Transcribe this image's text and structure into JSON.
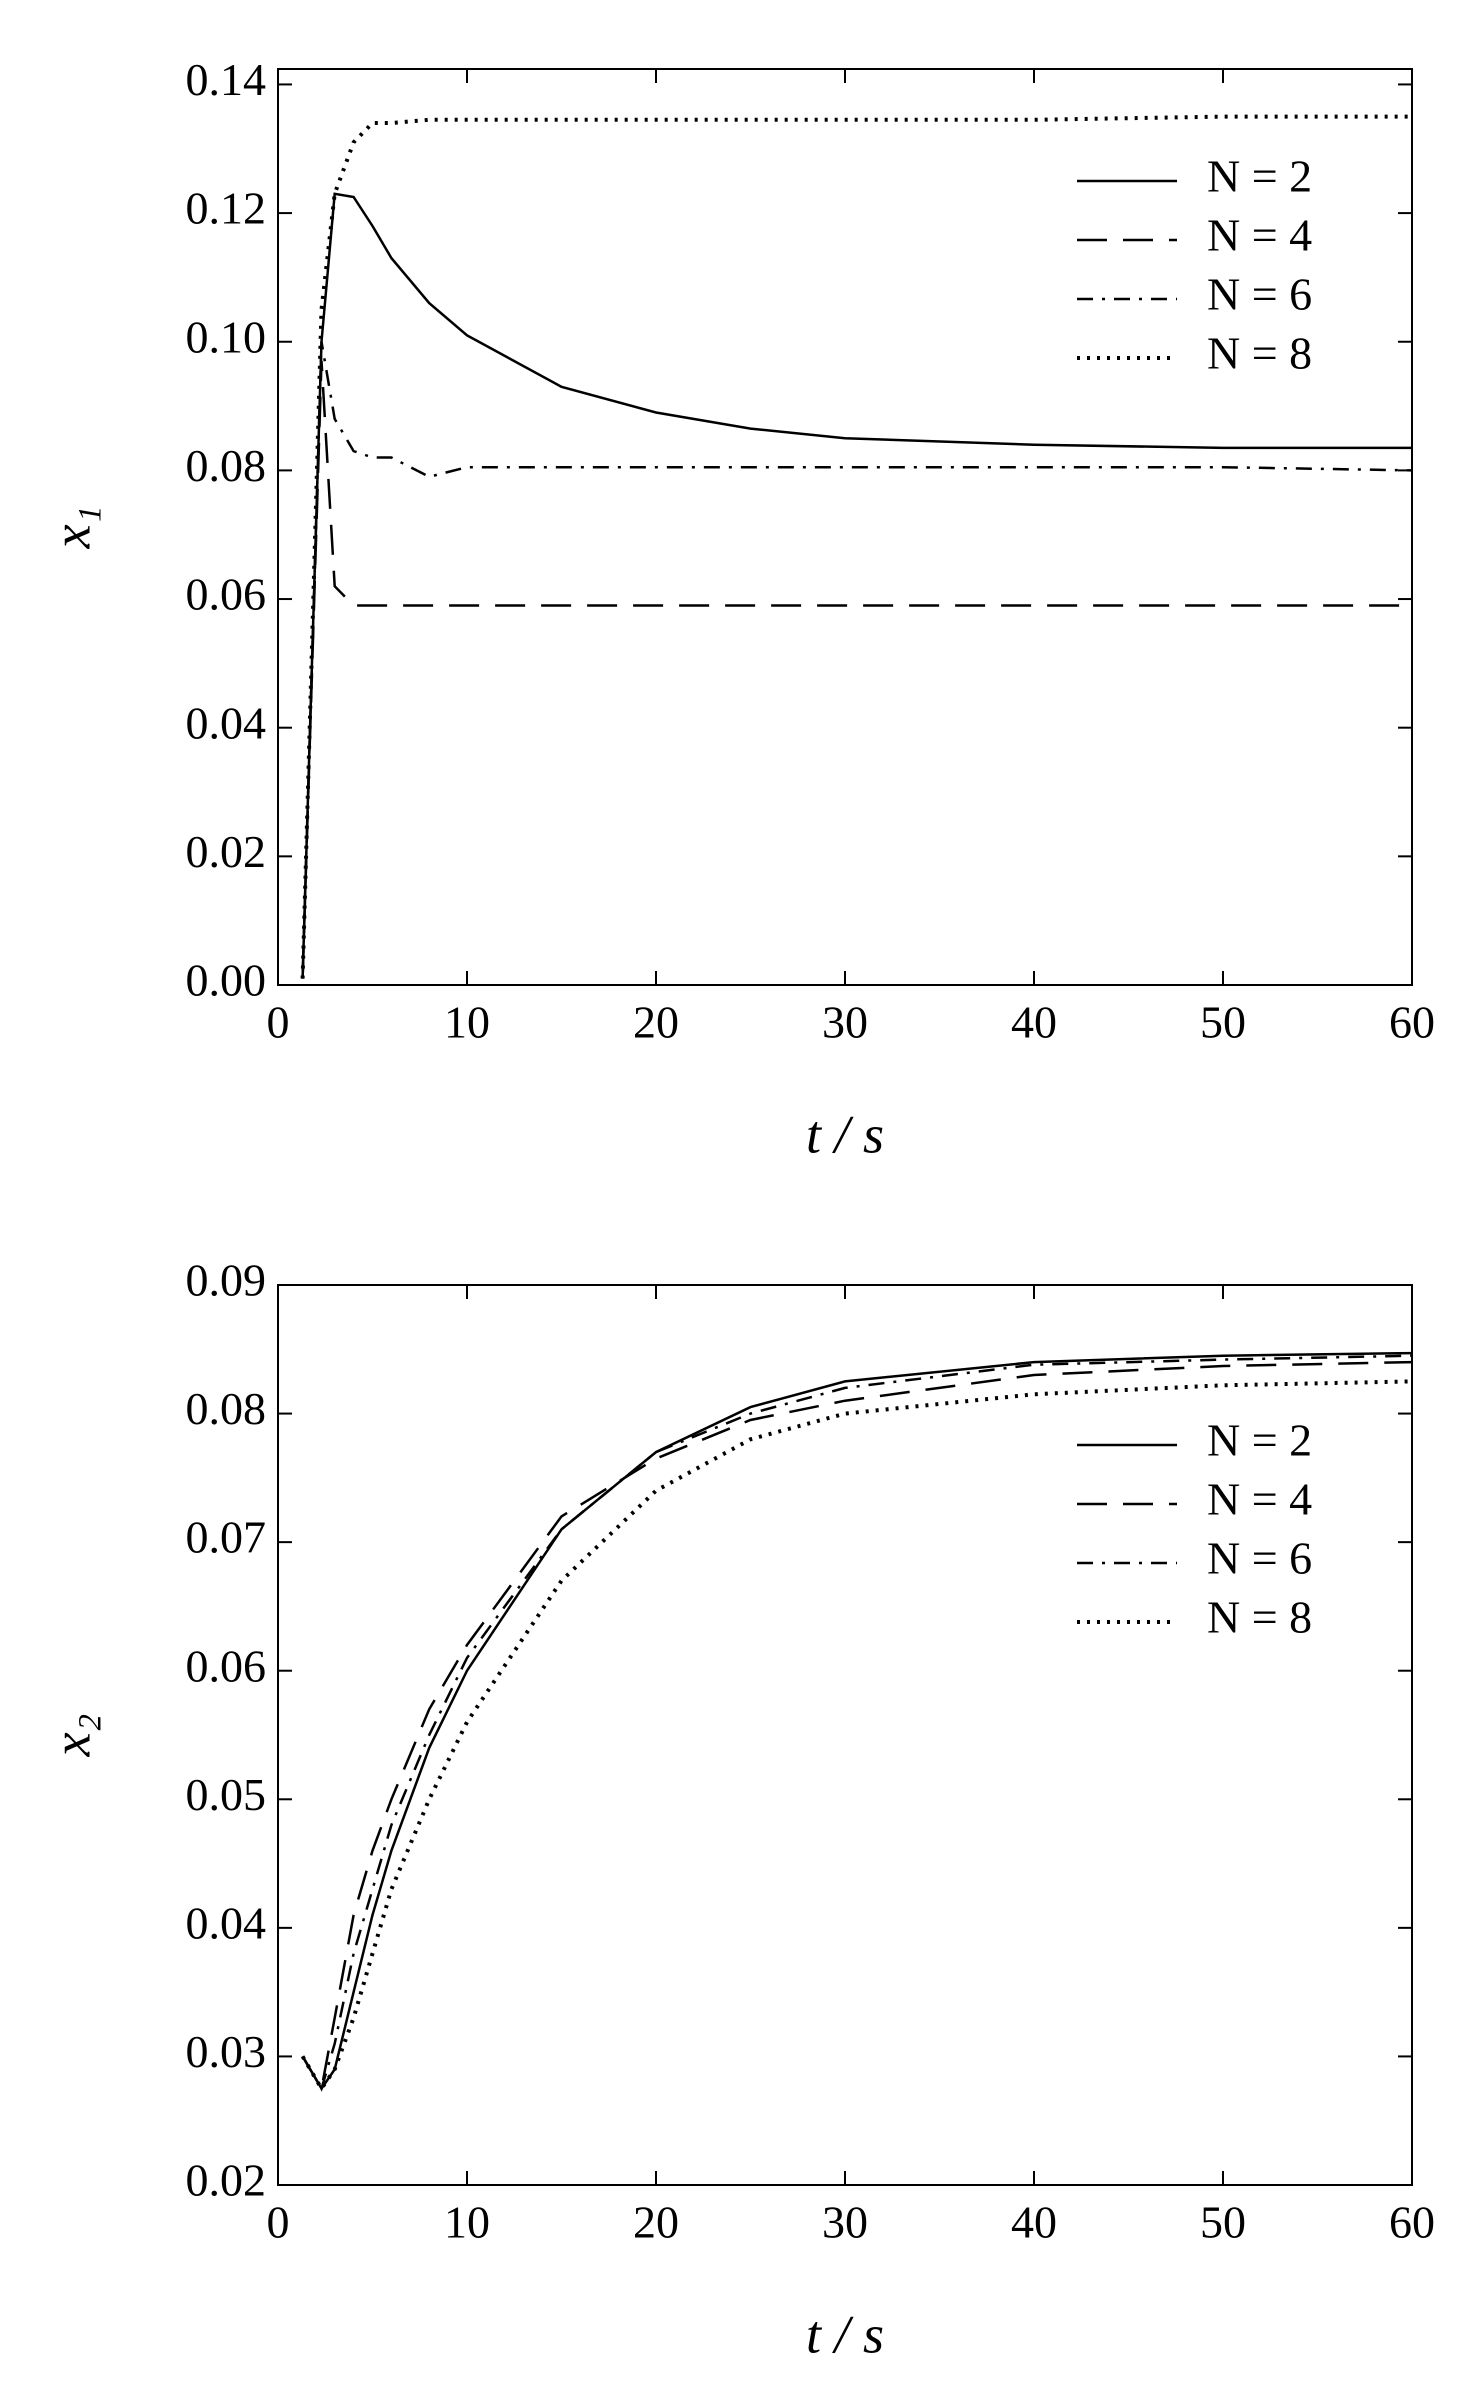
{
  "chart_data": [
    {
      "type": "line",
      "x_label": "t / s",
      "y_label": "x₁",
      "x": [
        1.3,
        2.3,
        3,
        4,
        5,
        6,
        8,
        10,
        15,
        20,
        25,
        30,
        40,
        50,
        60
      ],
      "series": [
        {
          "name": "N = 2",
          "color": "#000000",
          "dash": "solid",
          "values": [
            0.001,
            0.1,
            0.123,
            0.1225,
            0.118,
            0.113,
            0.106,
            0.101,
            0.093,
            0.089,
            0.0865,
            0.085,
            0.084,
            0.0835,
            0.0835
          ]
        },
        {
          "name": "N = 4",
          "color": "#000000",
          "dash": "long-dash",
          "values": [
            0.001,
            0.097,
            0.062,
            0.059,
            0.059,
            0.059,
            0.059,
            0.059,
            0.059,
            0.059,
            0.059,
            0.059,
            0.059,
            0.059,
            0.059
          ]
        },
        {
          "name": "N = 6",
          "color": "#000000",
          "dash": "dash-dot",
          "values": [
            0.001,
            0.1,
            0.088,
            0.083,
            0.082,
            0.082,
            0.079,
            0.0805,
            0.0805,
            0.0805,
            0.0805,
            0.0805,
            0.0805,
            0.0805,
            0.08
          ]
        },
        {
          "name": "N = 8",
          "color": "#000000",
          "dash": "dotted",
          "values": [
            0.001,
            0.105,
            0.123,
            0.131,
            0.134,
            0.134,
            0.1345,
            0.1345,
            0.1345,
            0.1345,
            0.1345,
            0.1345,
            0.1345,
            0.135,
            0.135
          ]
        }
      ],
      "xlim": [
        0,
        60
      ],
      "xticks": [
        0,
        10,
        20,
        30,
        40,
        50,
        60
      ],
      "ylim": [
        0,
        0.1424
      ],
      "yticks": [
        {
          "value": 0,
          "label": "0.00"
        },
        0.02,
        0.04,
        0.06,
        0.08,
        {
          "value": 0.1,
          "label": "0.10"
        },
        0.12,
        0.14
      ],
      "legend": "upper right"
    },
    {
      "type": "line",
      "x_label": "t / s",
      "y_label": "x₂",
      "x": [
        1.3,
        2.3,
        3,
        4,
        5,
        6,
        8,
        10,
        15,
        20,
        25,
        30,
        40,
        50,
        60
      ],
      "series": [
        {
          "name": "N = 2",
          "color": "#000000",
          "dash": "solid",
          "values": [
            0.03,
            0.0275,
            0.029,
            0.035,
            0.041,
            0.046,
            0.054,
            0.06,
            0.071,
            0.077,
            0.0805,
            0.0825,
            0.084,
            0.0845,
            0.0847
          ]
        },
        {
          "name": "N = 4",
          "color": "#000000",
          "dash": "long-dash",
          "values": [
            0.03,
            0.0275,
            0.033,
            0.041,
            0.046,
            0.05,
            0.057,
            0.062,
            0.072,
            0.0765,
            0.0795,
            0.081,
            0.083,
            0.0837,
            0.084
          ]
        },
        {
          "name": "N = 6",
          "color": "#000000",
          "dash": "dash-dot",
          "values": [
            0.03,
            0.0275,
            0.031,
            0.038,
            0.043,
            0.048,
            0.055,
            0.061,
            0.071,
            0.077,
            0.08,
            0.082,
            0.0838,
            0.0842,
            0.0845
          ]
        },
        {
          "name": "N = 8",
          "color": "#000000",
          "dash": "dotted",
          "values": [
            0.03,
            0.0275,
            0.029,
            0.033,
            0.038,
            0.043,
            0.05,
            0.056,
            0.067,
            0.074,
            0.078,
            0.08,
            0.0815,
            0.0822,
            0.0825
          ]
        }
      ],
      "xlim": [
        0,
        60
      ],
      "xticks": [
        0,
        10,
        20,
        30,
        40,
        50,
        60
      ],
      "ylim": [
        0.02,
        0.09
      ],
      "yticks": [
        0.02,
        0.03,
        0.04,
        0.05,
        0.06,
        0.07,
        0.08,
        0.09
      ],
      "legend": "center right"
    }
  ]
}
